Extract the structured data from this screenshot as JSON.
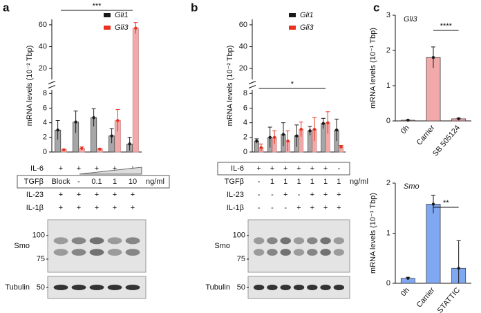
{
  "chart_data": [
    {
      "panel": "a",
      "type": "bar",
      "ylabel": "mRNA levels (10⁻² Tbp)",
      "significance": "***",
      "series": [
        {
          "name": "Gli1",
          "color": "#a6a6a6",
          "edge_color": "#1a1a1a",
          "values": [
            3.0,
            4.1,
            4.7,
            2.2,
            1.1
          ],
          "errors": [
            1.3,
            1.5,
            1.2,
            1.0,
            0.9
          ]
        },
        {
          "name": "Gli3",
          "color": "#f2a9a9",
          "edge_color": "#e8321e",
          "values": [
            0.3,
            0.5,
            0.4,
            4.3,
            57
          ],
          "errors": [
            0.1,
            0.2,
            0.1,
            1.5,
            5
          ]
        }
      ],
      "segments": [
        {
          "ylim": [
            0,
            8.5
          ],
          "yticks": [
            0,
            2,
            4,
            6,
            8
          ]
        },
        {
          "ylim": [
            10,
            65
          ],
          "yticks": [
            20,
            40,
            60
          ]
        }
      ],
      "conditions": [
        {
          "label": "IL-6",
          "values": [
            "+",
            "+",
            "+",
            "+",
            "+"
          ]
        },
        {
          "label": "TGFβ",
          "values": [
            "Block",
            "-",
            "0.1",
            "1",
            "10"
          ],
          "unit": "ng/ml"
        },
        {
          "label": "IL-23",
          "values": [
            "+",
            "+",
            "+",
            "+",
            "+"
          ]
        },
        {
          "label": "IL-1β",
          "values": [
            "+",
            "+",
            "+",
            "+",
            "+"
          ]
        }
      ],
      "blot": [
        {
          "label": "Smo",
          "markers": [
            100,
            75
          ]
        },
        {
          "label": "Tubulin",
          "markers": [
            50
          ]
        }
      ]
    },
    {
      "panel": "b",
      "type": "bar",
      "ylabel": "mRNA levels (10⁻² Tbp)",
      "significance": "*",
      "series": [
        {
          "name": "Gli1",
          "color": "#a6a6a6",
          "edge_color": "#1a1a1a",
          "values": [
            1.5,
            2.0,
            2.4,
            2.2,
            2.9,
            3.9,
            3.0
          ],
          "errors": [
            0.3,
            1.4,
            1.6,
            1.5,
            0.6,
            0.7,
            1.5
          ]
        },
        {
          "name": "Gli3",
          "color": "#f2a9a9",
          "edge_color": "#e8321e",
          "values": [
            0.6,
            2.0,
            1.5,
            3.1,
            3.1,
            4.0,
            0.7
          ],
          "errors": [
            0.5,
            0.9,
            1.4,
            1.0,
            1.6,
            1.5,
            0.2
          ]
        }
      ],
      "segments": [
        {
          "ylim": [
            0,
            8.5
          ],
          "yticks": [
            0,
            2,
            4,
            6,
            8
          ]
        },
        {
          "ylim": [
            10,
            65
          ],
          "yticks": [
            20,
            40,
            60
          ]
        }
      ],
      "conditions": [
        {
          "label": "IL-6",
          "values": [
            "+",
            "+",
            "+",
            "+",
            "+",
            "+",
            "-"
          ]
        },
        {
          "label": "TGFβ",
          "values": [
            "-",
            "1",
            "1",
            "1",
            "1",
            "1",
            "1"
          ],
          "unit": "ng/ml"
        },
        {
          "label": "IL-23",
          "values": [
            "-",
            "-",
            "+",
            "-",
            "+",
            "+",
            "+"
          ]
        },
        {
          "label": "IL-1β",
          "values": [
            "-",
            "-",
            "-",
            "+",
            "+",
            "+",
            "+"
          ]
        }
      ],
      "blot": [
        {
          "label": "Smo",
          "markers": [
            100,
            75
          ]
        },
        {
          "label": "Tubulin",
          "markers": [
            50
          ]
        }
      ]
    },
    {
      "panel": "c",
      "type": "bar",
      "title": "Gli3",
      "ylabel": "mRNA levels (10⁻¹ Tbp)",
      "significance": "****",
      "categories": [
        "0h",
        "Carrier",
        "SB 505124"
      ],
      "values": [
        0.02,
        1.8,
        0.06
      ],
      "errors": [
        0.01,
        0.3,
        0.02
      ],
      "color": "#f2a9a9",
      "edge_color": "#1a1a1a",
      "ylim": [
        0,
        3
      ],
      "yticks": [
        0,
        1,
        2,
        3
      ]
    },
    {
      "type": "bar",
      "title": "Smo",
      "ylabel": "mRNA levels (10⁻¹ Tbp)",
      "significance": "**",
      "categories": [
        "0h",
        "Carrier",
        "STATTIC"
      ],
      "values": [
        0.1,
        1.58,
        0.3
      ],
      "errors": [
        0.02,
        0.18,
        0.55
      ],
      "color": "#7fa7f2",
      "edge_color": "#1a1a1a",
      "ylim": [
        0,
        2
      ],
      "yticks": [
        0,
        1,
        2
      ]
    }
  ]
}
